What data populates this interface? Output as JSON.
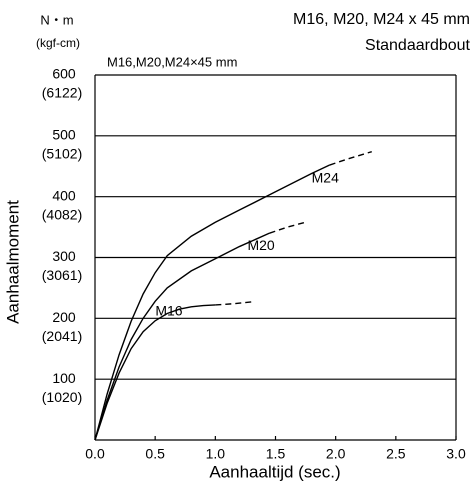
{
  "chart_data": {
    "type": "line",
    "title": "M16, M20, M24 x 45 mm",
    "subtitle": "Standaardbout",
    "plot_title": "M16,M20,M24×45 mm",
    "y_unit": "N・m",
    "y2_unit": "(kgf-cm)",
    "xlabel": "Aanhaaltijd (sec.)",
    "ylabel": "Aanhaalmoment",
    "xlim": [
      0,
      3
    ],
    "xticks": [
      {
        "value": 0,
        "label": "0.0"
      },
      0.5,
      {
        "value": 1,
        "label": "1.0"
      },
      1.5,
      {
        "value": 2,
        "label": "2.0"
      },
      2.5,
      {
        "value": 3,
        "label": "3.0"
      }
    ],
    "ylim": [
      0,
      600
    ],
    "yticks": [
      100,
      200,
      300,
      400,
      500,
      600
    ],
    "y2lim": [
      0,
      6122
    ],
    "y2ticks": [
      {
        "value": 1020,
        "label": "(1020)"
      },
      {
        "value": 2041,
        "label": "(2041)"
      },
      {
        "value": 3061,
        "label": "(3061)"
      },
      {
        "value": 4082,
        "label": "(4082)"
      },
      {
        "value": 5102,
        "label": "(5102)"
      },
      {
        "value": 6122,
        "label": "(6122)"
      }
    ],
    "grid": true,
    "series": [
      {
        "name": "M24",
        "color": "#000000",
        "x": [
          0,
          0.1,
          0.2,
          0.3,
          0.4,
          0.5,
          0.6,
          0.8,
          1.0,
          1.2,
          1.5,
          1.8,
          1.95
        ],
        "values": [
          0,
          75,
          140,
          195,
          240,
          275,
          303,
          335,
          358,
          378,
          408,
          438,
          452
        ],
        "extension": {
          "x": [
            1.95,
            2.1,
            2.3
          ],
          "values": [
            452,
            462,
            474
          ]
        }
      },
      {
        "name": "M20",
        "color": "#000000",
        "x": [
          0,
          0.1,
          0.2,
          0.3,
          0.4,
          0.5,
          0.6,
          0.8,
          1.0,
          1.2,
          1.45
        ],
        "values": [
          0,
          65,
          120,
          165,
          200,
          228,
          250,
          278,
          298,
          318,
          340
        ],
        "extension": {
          "x": [
            1.45,
            1.6,
            1.75
          ],
          "values": [
            340,
            350,
            358
          ]
        }
      },
      {
        "name": "M16",
        "color": "#000000",
        "x": [
          0,
          0.1,
          0.2,
          0.3,
          0.4,
          0.5,
          0.6,
          0.7,
          0.8,
          0.9,
          1.0
        ],
        "values": [
          0,
          60,
          110,
          150,
          178,
          196,
          208,
          215,
          219,
          221,
          222
        ],
        "extension": {
          "x": [
            1.0,
            1.15,
            1.3
          ],
          "values": [
            222,
            224,
            227
          ]
        }
      }
    ]
  }
}
